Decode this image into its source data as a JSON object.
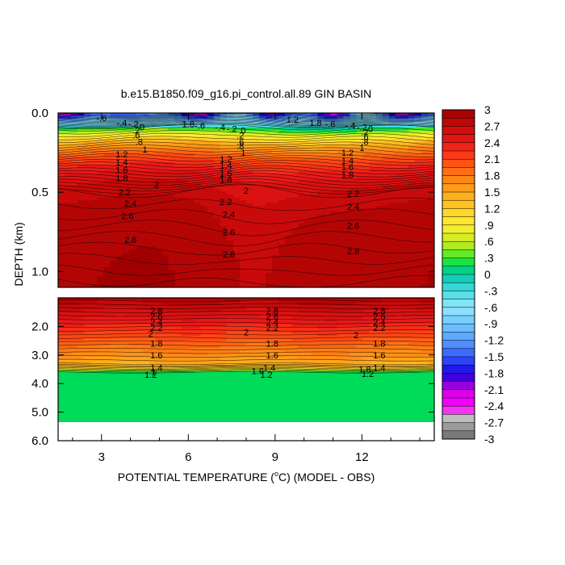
{
  "chart_data": {
    "type": "heatmap",
    "title": "b.e15.B1850.f09_g16.pi_control.all.89 GIN BASIN",
    "xlabel_main": "POTENTIAL TEMPERATURE (",
    "xlabel_degree": "o",
    "xlabel_unit": "C) (MODEL - OBS)",
    "ylabel": "DEPTH (km)",
    "xlim": [
      1.5,
      14.5
    ],
    "x_ticks": [
      3,
      6,
      9,
      12
    ],
    "x_tick_labels": [
      "3",
      "6",
      "9",
      "12"
    ],
    "upper_panel": {
      "ylim": [
        0.0,
        1.1
      ],
      "y_ticks": [
        0.0,
        0.5,
        1.0
      ],
      "y_tick_labels": [
        "0.0",
        "0.5",
        "1.0"
      ]
    },
    "lower_panel": {
      "ylim": [
        1.0,
        6.0
      ],
      "y_ticks": [
        2.0,
        3.0,
        4.0,
        5.0,
        6.0
      ],
      "y_tick_labels": [
        "2.0",
        "3.0",
        "4.0",
        "5.0",
        "6.0"
      ],
      "data_bottom_depth": 5.35
    },
    "colorbar": {
      "range": [
        -3,
        3
      ],
      "interval": 0.15,
      "tick_values": [
        3,
        2.7,
        2.4,
        2.1,
        1.8,
        1.5,
        1.2,
        0.9,
        0.6,
        0.3,
        0,
        -0.3,
        -0.6,
        -0.9,
        -1.2,
        -1.5,
        -1.8,
        -2.1,
        -2.4,
        -2.7,
        -3
      ],
      "tick_labels": [
        "3",
        "2.7",
        "2.4",
        "2.1",
        "1.8",
        "1.5",
        "1.2",
        ".9",
        ".6",
        ".3",
        "0",
        "-.3",
        "-.6",
        "-.9",
        "-1.2",
        "-1.5",
        "-1.8",
        "-2.1",
        "-2.4",
        "-2.7",
        "-3"
      ]
    },
    "contour_labels_upper": [
      {
        "x": 3.0,
        "d": 0.03,
        "text": "-.6"
      },
      {
        "x": 3.7,
        "d": 0.06,
        "text": "-.4"
      },
      {
        "x": 4.1,
        "d": 0.07,
        "text": "-.2"
      },
      {
        "x": 4.4,
        "d": 0.09,
        "text": "0"
      },
      {
        "x": 4.2,
        "d": 0.11,
        "text": ".2"
      },
      {
        "x": 4.2,
        "d": 0.14,
        "text": ".6"
      },
      {
        "x": 4.3,
        "d": 0.18,
        "text": ".8"
      },
      {
        "x": 4.5,
        "d": 0.23,
        "text": "1"
      },
      {
        "x": 3.7,
        "d": 0.26,
        "text": "1.2"
      },
      {
        "x": 3.7,
        "d": 0.31,
        "text": "1.4"
      },
      {
        "x": 3.7,
        "d": 0.36,
        "text": "1.6"
      },
      {
        "x": 3.7,
        "d": 0.41,
        "text": "1.8"
      },
      {
        "x": 4.9,
        "d": 0.45,
        "text": "2"
      },
      {
        "x": 3.8,
        "d": 0.5,
        "text": "2.2"
      },
      {
        "x": 4.0,
        "d": 0.57,
        "text": "2.4"
      },
      {
        "x": 3.9,
        "d": 0.65,
        "text": "2.6"
      },
      {
        "x": 4.0,
        "d": 0.8,
        "text": "2.8"
      },
      {
        "x": 6.0,
        "d": 0.07,
        "text": "1.8"
      },
      {
        "x": 6.4,
        "d": 0.08,
        "text": "-.6"
      },
      {
        "x": 7.1,
        "d": 0.09,
        "text": "-.4"
      },
      {
        "x": 7.5,
        "d": 0.1,
        "text": "-.2"
      },
      {
        "x": 7.9,
        "d": 0.11,
        "text": "0"
      },
      {
        "x": 7.8,
        "d": 0.14,
        "text": ".2"
      },
      {
        "x": 7.8,
        "d": 0.18,
        "text": ".6"
      },
      {
        "x": 7.8,
        "d": 0.21,
        "text": ".8"
      },
      {
        "x": 7.9,
        "d": 0.25,
        "text": "1"
      },
      {
        "x": 7.3,
        "d": 0.29,
        "text": "1.2"
      },
      {
        "x": 7.3,
        "d": 0.33,
        "text": "1.4"
      },
      {
        "x": 7.3,
        "d": 0.38,
        "text": "1.6"
      },
      {
        "x": 7.3,
        "d": 0.42,
        "text": "1.8"
      },
      {
        "x": 8.0,
        "d": 0.49,
        "text": "2"
      },
      {
        "x": 7.3,
        "d": 0.56,
        "text": "2.2"
      },
      {
        "x": 7.4,
        "d": 0.64,
        "text": "2.4"
      },
      {
        "x": 7.4,
        "d": 0.75,
        "text": "2.6"
      },
      {
        "x": 7.4,
        "d": 0.89,
        "text": "2.8"
      },
      {
        "x": 9.6,
        "d": 0.04,
        "text": "1.2"
      },
      {
        "x": 10.4,
        "d": 0.06,
        "text": "1.8"
      },
      {
        "x": 10.9,
        "d": 0.07,
        "text": "-.6"
      },
      {
        "x": 11.6,
        "d": 0.08,
        "text": "-.4"
      },
      {
        "x": 12.0,
        "d": 0.09,
        "text": "-.2"
      },
      {
        "x": 12.3,
        "d": 0.1,
        "text": "0"
      },
      {
        "x": 12.1,
        "d": 0.12,
        "text": ".2"
      },
      {
        "x": 12.1,
        "d": 0.15,
        "text": ".6"
      },
      {
        "x": 12.1,
        "d": 0.18,
        "text": ".8"
      },
      {
        "x": 12.0,
        "d": 0.22,
        "text": "1"
      },
      {
        "x": 11.5,
        "d": 0.25,
        "text": "1.2"
      },
      {
        "x": 11.5,
        "d": 0.3,
        "text": "1.4"
      },
      {
        "x": 11.5,
        "d": 0.34,
        "text": "1.6"
      },
      {
        "x": 11.5,
        "d": 0.39,
        "text": "1.8"
      },
      {
        "x": 11.7,
        "d": 0.51,
        "text": "2.2"
      },
      {
        "x": 11.7,
        "d": 0.59,
        "text": "2.4"
      },
      {
        "x": 11.7,
        "d": 0.71,
        "text": "2.6"
      },
      {
        "x": 11.7,
        "d": 0.87,
        "text": "2.8"
      }
    ],
    "contour_labels_lower": [
      {
        "x": 4.9,
        "d": 1.45,
        "text": "2.8"
      },
      {
        "x": 4.9,
        "d": 1.65,
        "text": "2.6"
      },
      {
        "x": 4.9,
        "d": 1.85,
        "text": "2.4"
      },
      {
        "x": 4.9,
        "d": 2.05,
        "text": "2.2"
      },
      {
        "x": 4.7,
        "d": 2.25,
        "text": "2"
      },
      {
        "x": 4.9,
        "d": 2.6,
        "text": "1.8"
      },
      {
        "x": 4.9,
        "d": 3.0,
        "text": "1.6"
      },
      {
        "x": 4.9,
        "d": 3.45,
        "text": "1.4"
      },
      {
        "x": 4.8,
        "d": 3.58,
        "text": "1"
      },
      {
        "x": 4.7,
        "d": 3.68,
        "text": "1.2"
      },
      {
        "x": 8.9,
        "d": 1.45,
        "text": "2.8"
      },
      {
        "x": 8.9,
        "d": 1.65,
        "text": "2.6"
      },
      {
        "x": 8.9,
        "d": 1.85,
        "text": "2.4"
      },
      {
        "x": 8.9,
        "d": 2.05,
        "text": "2.2"
      },
      {
        "x": 8.0,
        "d": 2.2,
        "text": "2"
      },
      {
        "x": 8.9,
        "d": 2.6,
        "text": "1.8"
      },
      {
        "x": 8.9,
        "d": 3.0,
        "text": "1.6"
      },
      {
        "x": 8.8,
        "d": 3.45,
        "text": "1.4"
      },
      {
        "x": 8.4,
        "d": 3.55,
        "text": "1.6"
      },
      {
        "x": 8.7,
        "d": 3.68,
        "text": "1.2"
      },
      {
        "x": 12.6,
        "d": 1.45,
        "text": "2.8"
      },
      {
        "x": 12.6,
        "d": 1.65,
        "text": "2.6"
      },
      {
        "x": 12.6,
        "d": 1.85,
        "text": "2.4"
      },
      {
        "x": 12.6,
        "d": 2.05,
        "text": "2.2"
      },
      {
        "x": 11.8,
        "d": 2.3,
        "text": "2"
      },
      {
        "x": 12.6,
        "d": 2.6,
        "text": "1.8"
      },
      {
        "x": 12.6,
        "d": 3.0,
        "text": "1.6"
      },
      {
        "x": 12.6,
        "d": 3.45,
        "text": "1.4"
      },
      {
        "x": 12.1,
        "d": 3.5,
        "text": "1.8"
      },
      {
        "x": 12.2,
        "d": 3.65,
        "text": "1.2"
      }
    ]
  }
}
